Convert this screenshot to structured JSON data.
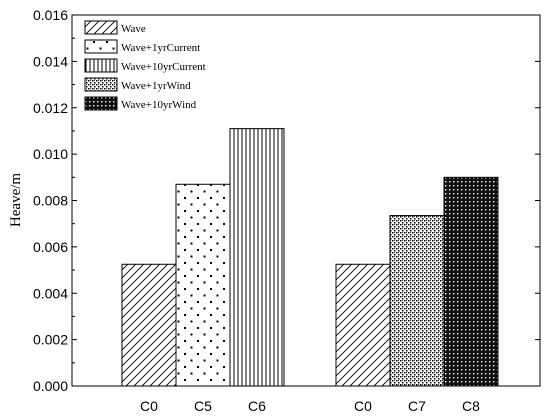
{
  "chart_data": {
    "type": "bar",
    "title": "",
    "xlabel": "",
    "ylabel": "Heave/m",
    "ylim": [
      0,
      0.016
    ],
    "yticks": [
      "0.000",
      "0.002",
      "0.004",
      "0.006",
      "0.008",
      "0.010",
      "0.012",
      "0.014",
      "0.016"
    ],
    "grid": false,
    "legend_position": "top-left",
    "legend": [
      {
        "label": "Wave",
        "pattern": "diagonal"
      },
      {
        "label": "Wave+1yrCurrent",
        "pattern": "sparse-dots"
      },
      {
        "label": "Wave+10yrCurrent",
        "pattern": "vertical-lines"
      },
      {
        "label": "Wave+1yrWind",
        "pattern": "checker"
      },
      {
        "label": "Wave+10yrWind",
        "pattern": "dense-dots"
      }
    ],
    "groups": [
      {
        "bars": [
          {
            "category": "C0",
            "value": 0.00525,
            "pattern": "diagonal"
          },
          {
            "category": "C5",
            "value": 0.0087,
            "pattern": "sparse-dots"
          },
          {
            "category": "C6",
            "value": 0.0111,
            "pattern": "vertical-lines"
          }
        ]
      },
      {
        "bars": [
          {
            "category": "C0",
            "value": 0.00525,
            "pattern": "diagonal"
          },
          {
            "category": "C7",
            "value": 0.00735,
            "pattern": "checker"
          },
          {
            "category": "C8",
            "value": 0.009,
            "pattern": "dense-dots"
          }
        ]
      }
    ]
  }
}
